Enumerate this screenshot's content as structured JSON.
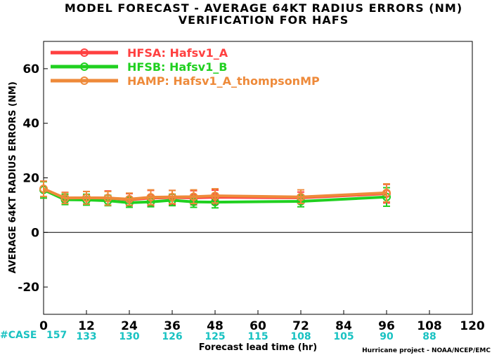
{
  "title": {
    "line1": "MODEL FORECAST - AVERAGE 64KT RADIUS ERRORS (NM)",
    "line2": "VERIFICATION FOR HAFS"
  },
  "credit": "Hurricane project - NOAA/NCEP/EMC",
  "chart_data": {
    "type": "line",
    "xlabel": "Forecast lead time (hr)",
    "ylabel": "AVERAGE 64KT RADIUS ERRORS (NM)",
    "xlim": [
      0,
      120
    ],
    "ylim": [
      -30,
      70
    ],
    "x_ticks": [
      0,
      12,
      24,
      36,
      48,
      60,
      72,
      84,
      96,
      108,
      120
    ],
    "y_ticks": [
      -20,
      0,
      20,
      40,
      60
    ],
    "zero_line": true,
    "legend_position": "top-left",
    "case_label": "#CASE",
    "case_counts": [
      {
        "x": 0,
        "n": "157"
      },
      {
        "x": 12,
        "n": "133"
      },
      {
        "x": 24,
        "n": "130"
      },
      {
        "x": 36,
        "n": "126"
      },
      {
        "x": 48,
        "n": "125"
      },
      {
        "x": 60,
        "n": "115"
      },
      {
        "x": 72,
        "n": "108"
      },
      {
        "x": 84,
        "n": "105"
      },
      {
        "x": 96,
        "n": "90"
      },
      {
        "x": 108,
        "n": "88"
      }
    ],
    "series": [
      {
        "name": "HFSA: Hafsv1_A",
        "color": "#ff4040",
        "x": [
          0,
          6,
          12,
          18,
          24,
          30,
          36,
          42,
          48,
          72,
          96
        ],
        "values": [
          15.7,
          12.6,
          12.7,
          12.6,
          12.0,
          12.6,
          12.8,
          12.7,
          12.9,
          12.7,
          14.2
        ],
        "err_low": [
          12.6,
          10.5,
          10.4,
          10.0,
          9.8,
          9.8,
          10.2,
          10.1,
          10.3,
          10.6,
          10.8
        ],
        "err_high": [
          18.8,
          14.7,
          15.0,
          15.2,
          14.2,
          15.4,
          15.4,
          15.3,
          15.5,
          14.8,
          17.6
        ]
      },
      {
        "name": "HFSB: Hafsv1_B",
        "color": "#20d020",
        "x": [
          0,
          6,
          12,
          18,
          24,
          30,
          36,
          42,
          48,
          72,
          96
        ],
        "values": [
          15.6,
          12.0,
          11.9,
          11.6,
          10.9,
          11.2,
          11.8,
          11.2,
          11.1,
          11.4,
          13.0
        ],
        "err_low": [
          12.6,
          10.2,
          10.0,
          9.8,
          9.2,
          9.4,
          9.8,
          9.2,
          9.0,
          9.4,
          9.6
        ],
        "err_high": [
          18.6,
          14.0,
          14.0,
          13.6,
          12.8,
          13.2,
          14.0,
          13.4,
          13.4,
          13.6,
          16.4
        ]
      },
      {
        "name": "HAMP: Hafsv1_A_thompsonMP",
        "color": "#ee8a3a",
        "x": [
          0,
          6,
          12,
          18,
          24,
          30,
          36,
          42,
          48,
          72,
          96
        ],
        "values": [
          16.0,
          12.6,
          12.7,
          12.6,
          12.2,
          12.9,
          13.0,
          13.1,
          13.4,
          13.0,
          14.5
        ],
        "err_low": [
          13.2,
          10.6,
          10.4,
          10.0,
          10.0,
          10.2,
          10.6,
          10.6,
          10.8,
          10.6,
          11.2
        ],
        "err_high": [
          18.8,
          14.6,
          15.0,
          15.0,
          14.4,
          15.6,
          15.4,
          15.6,
          16.0,
          15.6,
          17.8
        ]
      }
    ]
  }
}
